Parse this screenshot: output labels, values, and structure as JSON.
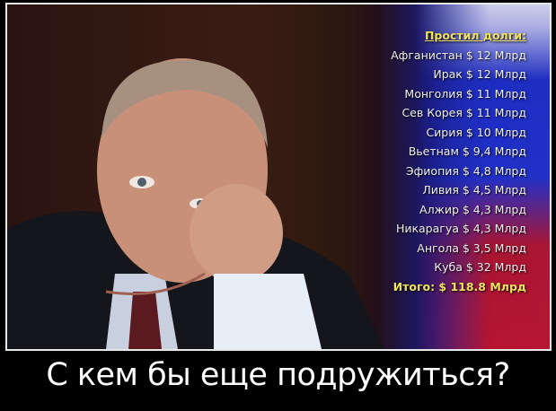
{
  "list": {
    "title": "Простил долги:",
    "items": [
      "Афганистан $ 12 Млрд",
      "Ирак $ 12 Млрд",
      "Монголия $ 11 Млрд",
      "Сев Корея $ 11 Млрд",
      "Сирия $ 10 Млрд",
      "Вьетнам $ 9,4 Млрд",
      "Эфиопия $ 4,8 Млрд",
      "Ливия $ 4,5 Млрд",
      "Алжир $ 4,3 Млрд",
      "Никарагуа $ 4,3 Млрд",
      "Ангола $ 3,5 Млрд",
      "Куба $ 32 Млрд"
    ],
    "total": "Итого: $ 118.8 Млрд"
  },
  "caption": "С кем бы еще подружиться?",
  "colors": {
    "title": "#f0e060",
    "flag_blue": "#2030c8",
    "flag_red": "#d01018"
  }
}
